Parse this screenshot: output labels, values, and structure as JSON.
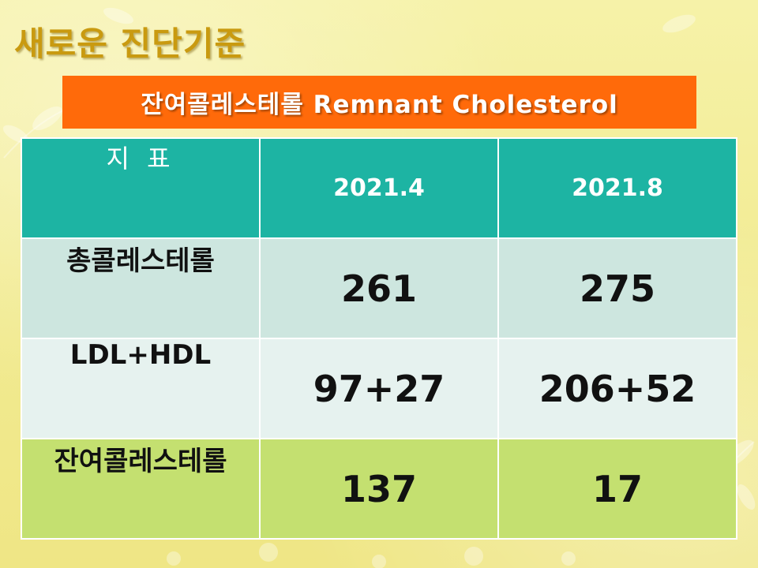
{
  "slide": {
    "title": "새로운 진단기준",
    "subtitle": "잔여콜레스테롤 Remnant Cholesterol"
  },
  "table": {
    "headers": [
      "지 표",
      "2021.4",
      "2021.8"
    ],
    "rows": [
      {
        "label": "총콜레스테롤",
        "v1": "261",
        "v2": "275"
      },
      {
        "label": "LDL+HDL",
        "v1": "97+27",
        "v2": "206+52"
      },
      {
        "label": "잔여콜레스테롤",
        "v1": "137",
        "v2": "17"
      }
    ]
  },
  "colors": {
    "background": "#f4ee9a",
    "title": "#c99a10",
    "subtitle_bar": "#ff6a0a",
    "header": "#1db4a3",
    "row1": "#cde6df",
    "row2": "#e6f2ef",
    "row3": "#c4e070"
  }
}
